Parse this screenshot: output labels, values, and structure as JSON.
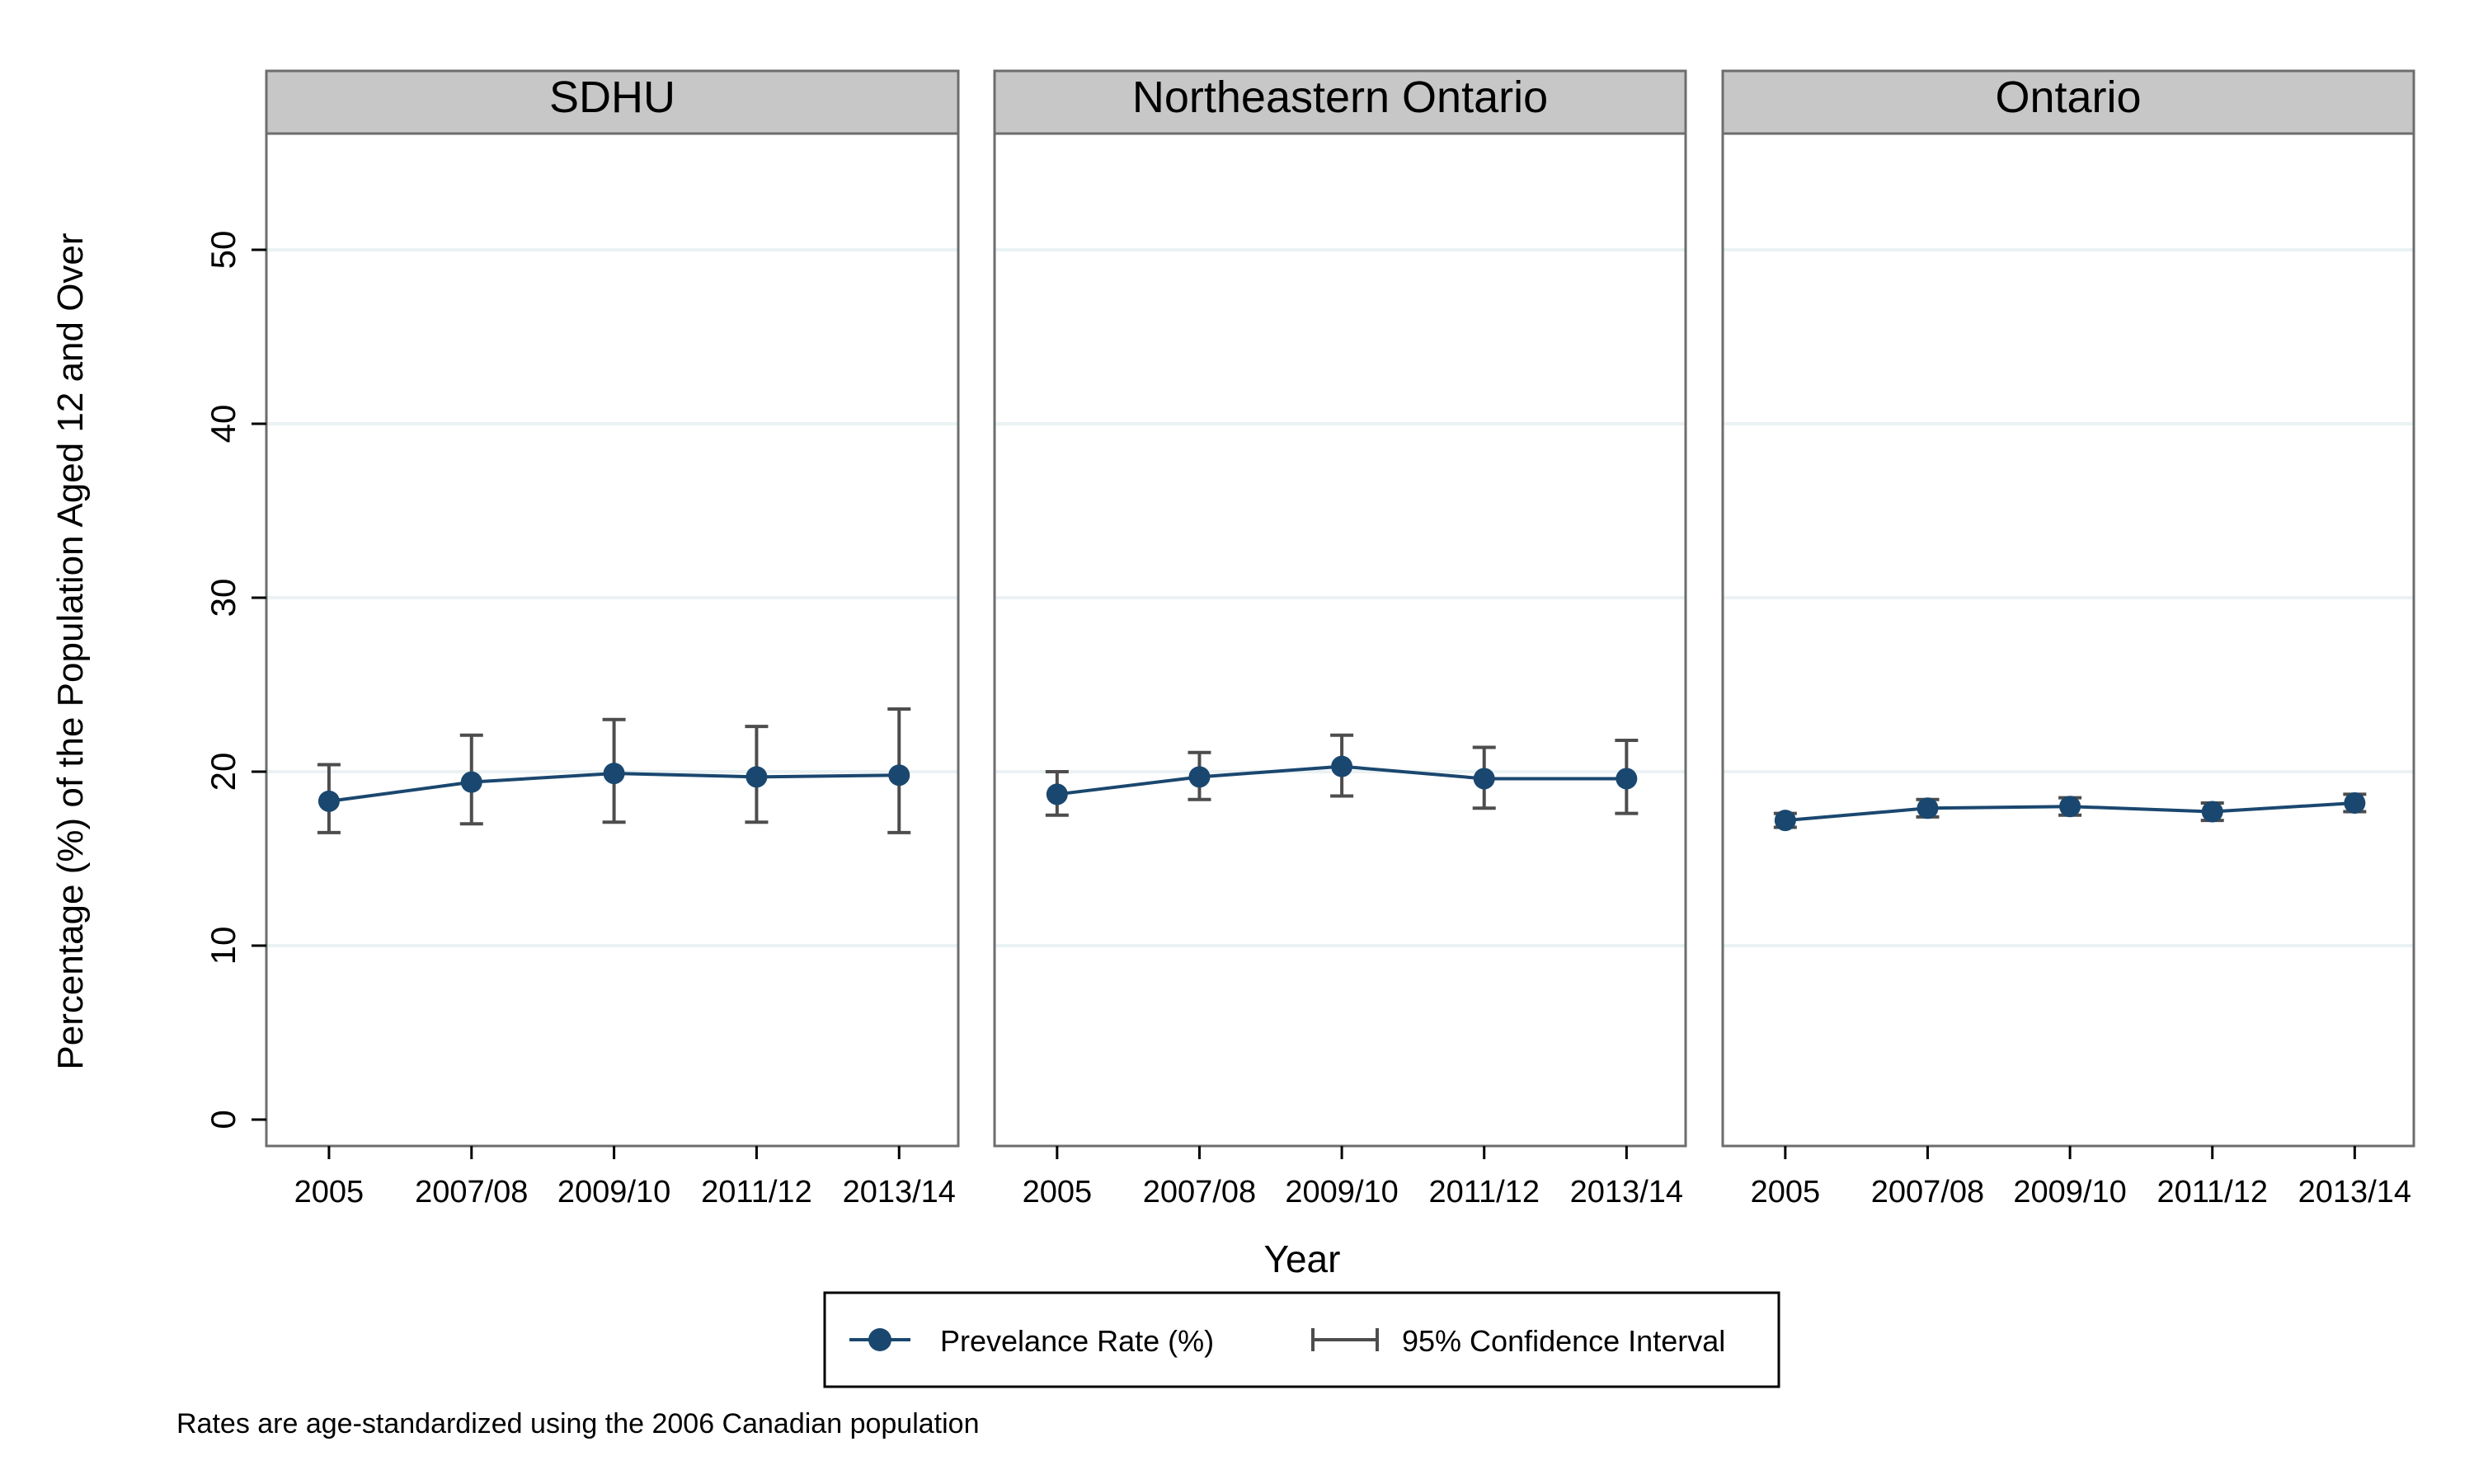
{
  "chart_data": {
    "type": "line",
    "ylabel": "Percentage (%) of the Population Aged 12 and Over",
    "xlabel": "Year",
    "categories": [
      "2005",
      "2007/08",
      "2009/10",
      "2011/12",
      "2013/14"
    ],
    "ylim": [
      0,
      57
    ],
    "yticks": [
      0,
      10,
      20,
      30,
      40,
      50
    ],
    "grid": true,
    "panels": [
      {
        "name": "SDHU",
        "values": [
          18.3,
          19.4,
          19.9,
          19.7,
          19.8
        ],
        "ci_lower": [
          16.5,
          17.0,
          17.1,
          17.1,
          16.5
        ],
        "ci_upper": [
          20.4,
          22.1,
          23.0,
          22.6,
          23.6
        ]
      },
      {
        "name": "Northeastern Ontario",
        "values": [
          18.7,
          19.7,
          20.3,
          19.6,
          19.6
        ],
        "ci_lower": [
          17.5,
          18.4,
          18.6,
          17.9,
          17.6
        ],
        "ci_upper": [
          20.0,
          21.1,
          22.1,
          21.4,
          21.8
        ]
      },
      {
        "name": "Ontario",
        "values": [
          17.2,
          17.9,
          18.0,
          17.7,
          18.2
        ],
        "ci_lower": [
          16.8,
          17.4,
          17.5,
          17.2,
          17.7
        ],
        "ci_upper": [
          17.6,
          18.4,
          18.5,
          18.2,
          18.7
        ]
      }
    ],
    "legend": {
      "position": "bottom",
      "entries": [
        "Prevelance Rate (%)",
        "95% Confidence Interval"
      ]
    },
    "note": "Rates are age-standardized using the 2006 Canadian population",
    "colors": {
      "series": "#1a476f",
      "ci": "#4d4d4d",
      "grid": "#eaf2f3",
      "header": "#c7c7c7",
      "frame": "#6d6d6d"
    }
  }
}
